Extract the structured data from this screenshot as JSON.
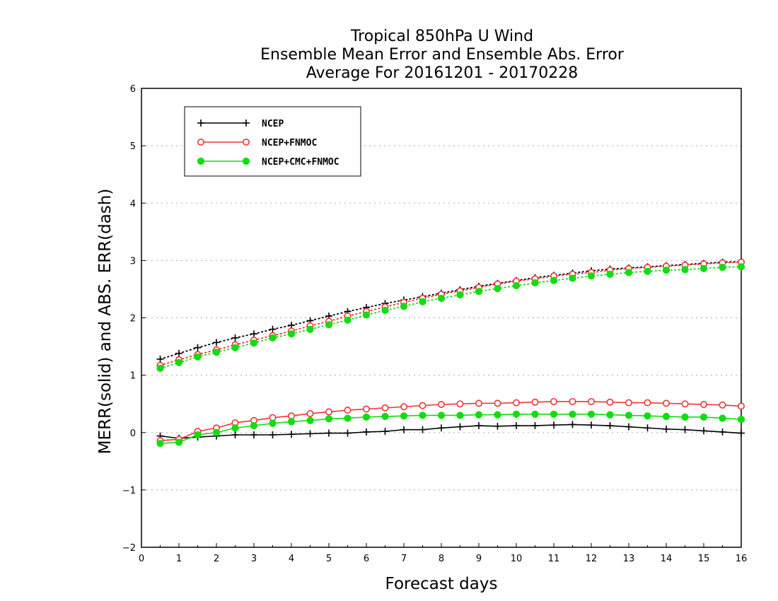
{
  "chart_data": {
    "type": "line",
    "title_lines": [
      "Tropical 850hPa U Wind",
      "Ensemble Mean Error and Ensemble Abs. Error",
      "Average For 20161201 - 20170228"
    ],
    "xlabel": "Forecast days",
    "ylabel": "MERR(solid) and ABS. ERR(dash)",
    "xlim": [
      0,
      16
    ],
    "ylim": [
      -2,
      6
    ],
    "xticks": [
      "0",
      "1",
      "2",
      "3",
      "4",
      "5",
      "6",
      "7",
      "8",
      "9",
      "10",
      "11",
      "12",
      "13",
      "14",
      "15",
      "16"
    ],
    "yticks": [
      "−2",
      "−1",
      "0",
      "1",
      "2",
      "3",
      "4",
      "5",
      "6"
    ],
    "grid": "horizontal dotted",
    "legend_position": "top-left",
    "x": [
      0.5,
      1,
      1.5,
      2,
      2.5,
      3,
      3.5,
      4,
      4.5,
      5,
      5.5,
      6,
      6.5,
      7,
      7.5,
      8,
      8.5,
      9,
      9.5,
      10,
      10.5,
      11,
      11.5,
      12,
      12.5,
      13,
      13.5,
      14,
      14.5,
      15,
      15.5,
      16
    ],
    "series": [
      {
        "name": "NCEP",
        "color": "#000000",
        "marker": "plus",
        "merr": [
          -0.06,
          -0.1,
          -0.08,
          -0.06,
          -0.04,
          -0.04,
          -0.04,
          -0.03,
          -0.02,
          -0.01,
          -0.01,
          0.01,
          0.02,
          0.05,
          0.05,
          0.08,
          0.1,
          0.12,
          0.11,
          0.12,
          0.12,
          0.13,
          0.14,
          0.13,
          0.12,
          0.1,
          0.08,
          0.06,
          0.05,
          0.03,
          0.01,
          -0.01
        ],
        "abs_err": [
          1.28,
          1.38,
          1.48,
          1.57,
          1.65,
          1.72,
          1.8,
          1.87,
          1.95,
          2.03,
          2.11,
          2.18,
          2.25,
          2.31,
          2.37,
          2.43,
          2.49,
          2.55,
          2.6,
          2.65,
          2.7,
          2.74,
          2.78,
          2.82,
          2.85,
          2.87,
          2.89,
          2.91,
          2.93,
          2.95,
          2.97,
          2.98
        ]
      },
      {
        "name": "NCEP+FNMOC",
        "color": "#ee3333",
        "marker": "open-circle",
        "merr": [
          -0.14,
          -0.12,
          0.02,
          0.08,
          0.17,
          0.21,
          0.26,
          0.29,
          0.33,
          0.36,
          0.39,
          0.41,
          0.43,
          0.45,
          0.47,
          0.49,
          0.5,
          0.51,
          0.51,
          0.52,
          0.53,
          0.54,
          0.54,
          0.54,
          0.53,
          0.52,
          0.52,
          0.51,
          0.5,
          0.49,
          0.48,
          0.46
        ],
        "abs_err": [
          1.17,
          1.27,
          1.36,
          1.44,
          1.53,
          1.61,
          1.69,
          1.77,
          1.86,
          1.94,
          2.03,
          2.11,
          2.19,
          2.27,
          2.34,
          2.41,
          2.47,
          2.53,
          2.59,
          2.64,
          2.68,
          2.73,
          2.76,
          2.79,
          2.83,
          2.86,
          2.88,
          2.9,
          2.92,
          2.94,
          2.96,
          2.97
        ]
      },
      {
        "name": "NCEP+CMC+FNMOC",
        "color": "#11dd11",
        "marker": "filled-circle",
        "merr": [
          -0.19,
          -0.17,
          -0.04,
          0.0,
          0.08,
          0.12,
          0.16,
          0.19,
          0.21,
          0.24,
          0.25,
          0.27,
          0.28,
          0.29,
          0.3,
          0.3,
          0.3,
          0.31,
          0.31,
          0.32,
          0.32,
          0.32,
          0.32,
          0.32,
          0.31,
          0.3,
          0.29,
          0.28,
          0.27,
          0.27,
          0.25,
          0.23
        ],
        "abs_err": [
          1.12,
          1.22,
          1.32,
          1.4,
          1.48,
          1.56,
          1.65,
          1.72,
          1.8,
          1.88,
          1.96,
          2.05,
          2.13,
          2.2,
          2.28,
          2.34,
          2.4,
          2.46,
          2.51,
          2.56,
          2.61,
          2.65,
          2.69,
          2.73,
          2.76,
          2.79,
          2.81,
          2.83,
          2.84,
          2.86,
          2.88,
          2.89
        ]
      }
    ]
  }
}
